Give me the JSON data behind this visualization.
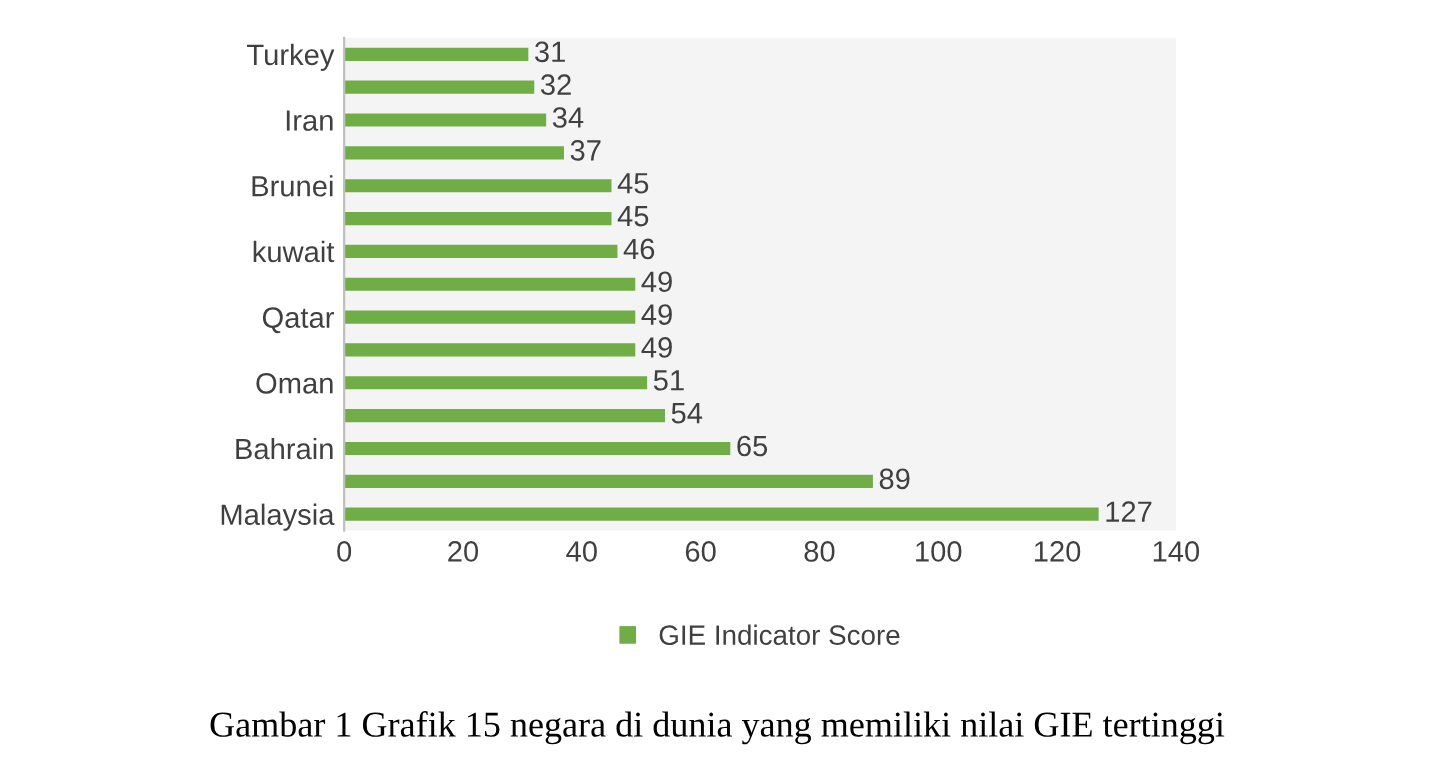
{
  "chart_data": {
    "type": "bar",
    "orientation": "horizontal",
    "categories": [
      "Turkey",
      null,
      "Iran",
      null,
      "Brunei",
      null,
      "kuwait",
      null,
      "Qatar",
      null,
      "Oman",
      null,
      "Bahrain",
      null,
      "Malaysia"
    ],
    "series": [
      {
        "name": "GIE Indicator Score",
        "color": "#70ad47",
        "values": [
          31,
          32,
          34,
          37,
          45,
          45,
          46,
          49,
          49,
          49,
          51,
          54,
          65,
          89,
          127
        ]
      }
    ],
    "xlim": [
      0,
      140
    ],
    "xticks": [
      0,
      20,
      40,
      60,
      80,
      100,
      120,
      140
    ],
    "data_labels": true,
    "legend": "bottom",
    "grid": false,
    "annotations": [
      "Gambar 1 Grafik 15 negara di dunia yang memiliki nilai GIE tertinggi"
    ]
  }
}
